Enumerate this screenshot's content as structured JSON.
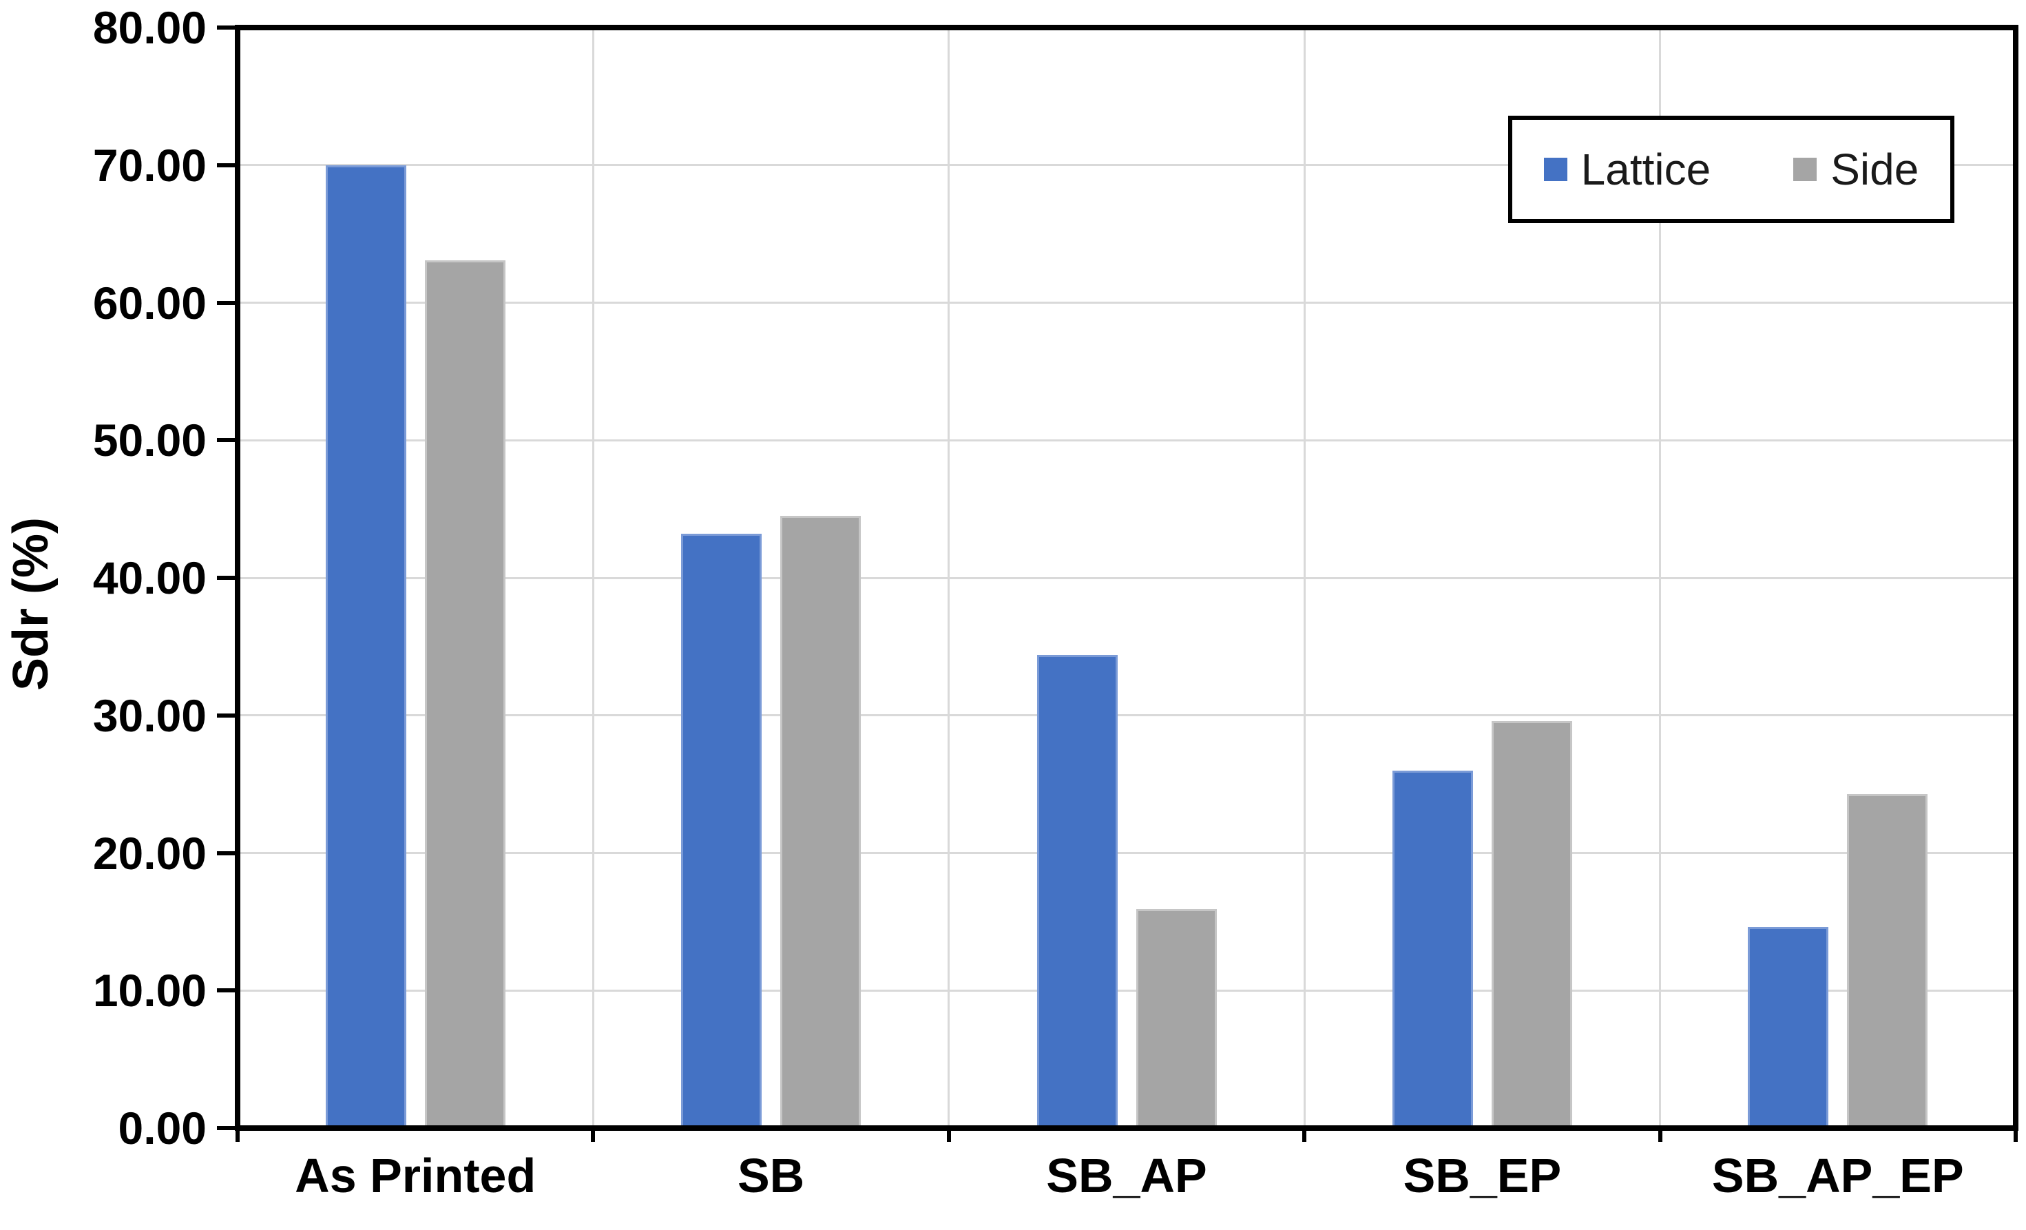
{
  "chart_data": {
    "type": "bar",
    "title": "",
    "xlabel": "",
    "ylabel": "Sdr (%)",
    "categories": [
      "As Printed",
      "SB",
      "SB_AP",
      "SB_EP",
      "SB_AP_EP"
    ],
    "series": [
      {
        "name": "Lattice",
        "color": "#4472C4",
        "border_color": "#7b9bd7",
        "values": [
          70.0,
          43.2,
          34.4,
          26.0,
          14.6
        ]
      },
      {
        "name": "Side",
        "color": "#A5A5A5",
        "border_color": "#c6c6c6",
        "values": [
          63.1,
          44.5,
          15.9,
          29.6,
          24.3
        ]
      }
    ],
    "ylim": [
      0,
      80
    ],
    "ytick_step": 10,
    "ytick_decimals": 2,
    "grid": true,
    "legend_position": "top-right"
  },
  "colors": {
    "background": "#FFFFFF",
    "gridline": "#D9D9D9",
    "axis_frame": "#000000",
    "text": "#000000"
  }
}
